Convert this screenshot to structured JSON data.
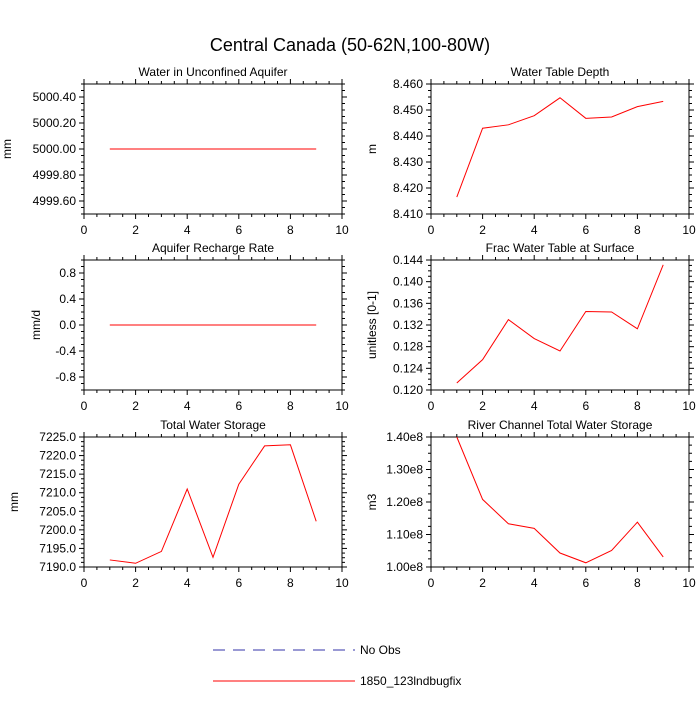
{
  "title": "Central Canada (50-62N,100-80W)",
  "colors": {
    "series": "#ff0000",
    "noobs": "#3333aa",
    "axis": "#000000"
  },
  "legend": [
    {
      "label": "No Obs",
      "style": "dashed",
      "color": "#3333aa"
    },
    {
      "label": "1850_123lndbugfix",
      "style": "solid",
      "color": "#ff0000"
    }
  ],
  "chart_data": [
    {
      "type": "line",
      "title": "Water in Unconfined Aquifer",
      "ylabel": "mm",
      "xlim": [
        0,
        10
      ],
      "ylim": [
        4999.5,
        5000.5
      ],
      "xticks": [
        0,
        2,
        4,
        6,
        8,
        10
      ],
      "xtick_labels": [
        "0",
        "2",
        "4",
        "6",
        "8",
        "10"
      ],
      "yticks": [
        4999.6,
        4999.8,
        5000.0,
        5000.2,
        5000.4
      ],
      "ytick_labels": [
        "4999.60",
        "4999.80",
        "5000.00",
        "5000.20",
        "5000.40"
      ],
      "x": [
        1,
        2,
        3,
        4,
        5,
        6,
        7,
        8,
        9
      ],
      "series": [
        {
          "name": "1850_123lndbugfix",
          "values": [
            5000,
            5000,
            5000,
            5000,
            5000,
            5000,
            5000,
            5000,
            5000
          ]
        }
      ]
    },
    {
      "type": "line",
      "title": "Water Table Depth",
      "ylabel": "m",
      "xlim": [
        0,
        10
      ],
      "ylim": [
        8.41,
        8.46
      ],
      "xticks": [
        0,
        2,
        4,
        6,
        8,
        10
      ],
      "xtick_labels": [
        "0",
        "2",
        "4",
        "6",
        "8",
        "10"
      ],
      "yticks": [
        8.41,
        8.42,
        8.43,
        8.44,
        8.45,
        8.46
      ],
      "ytick_labels": [
        "8.410",
        "8.420",
        "8.430",
        "8.440",
        "8.450",
        "8.460"
      ],
      "x": [
        1,
        2,
        3,
        4,
        5,
        6,
        7,
        8,
        9
      ],
      "series": [
        {
          "name": "1850_123lndbugfix",
          "values": [
            8.4165,
            8.443,
            8.4443,
            8.4478,
            8.4547,
            8.4468,
            8.4473,
            8.4513,
            8.4533
          ]
        }
      ]
    },
    {
      "type": "line",
      "title": "Aquifer Recharge Rate",
      "ylabel": "mm/d",
      "xlim": [
        0,
        10
      ],
      "ylim": [
        -1.0,
        1.0
      ],
      "xticks": [
        0,
        2,
        4,
        6,
        8,
        10
      ],
      "xtick_labels": [
        "0",
        "2",
        "4",
        "6",
        "8",
        "10"
      ],
      "yticks": [
        -0.8,
        -0.4,
        0.0,
        0.4,
        0.8
      ],
      "ytick_labels": [
        "-0.8",
        "-0.4",
        "0.0",
        "0.4",
        "0.8"
      ],
      "x": [
        1,
        2,
        3,
        4,
        5,
        6,
        7,
        8,
        9
      ],
      "series": [
        {
          "name": "1850_123lndbugfix",
          "values": [
            0,
            0,
            0,
            0,
            0,
            0,
            0,
            0,
            0
          ]
        }
      ]
    },
    {
      "type": "line",
      "title": "Frac Water Table at Surface",
      "ylabel": "unitless [0-1]",
      "xlim": [
        0,
        10
      ],
      "ylim": [
        0.12,
        0.144
      ],
      "xticks": [
        0,
        2,
        4,
        6,
        8,
        10
      ],
      "xtick_labels": [
        "0",
        "2",
        "4",
        "6",
        "8",
        "10"
      ],
      "yticks": [
        0.12,
        0.124,
        0.128,
        0.132,
        0.136,
        0.14,
        0.144
      ],
      "ytick_labels": [
        "0.120",
        "0.124",
        "0.128",
        "0.132",
        "0.136",
        "0.140",
        "0.144"
      ],
      "x": [
        1,
        2,
        3,
        4,
        5,
        6,
        7,
        8,
        9
      ],
      "series": [
        {
          "name": "1850_123lndbugfix",
          "values": [
            0.1213,
            0.1256,
            0.133,
            0.1295,
            0.1272,
            0.1345,
            0.1344,
            0.1313,
            0.1431
          ]
        }
      ]
    },
    {
      "type": "line",
      "title": "Total Water Storage",
      "ylabel": "mm",
      "xlim": [
        0,
        10
      ],
      "ylim": [
        7190.0,
        7225.0
      ],
      "xticks": [
        0,
        2,
        4,
        6,
        8,
        10
      ],
      "xtick_labels": [
        "0",
        "2",
        "4",
        "6",
        "8",
        "10"
      ],
      "yticks": [
        7190.0,
        7195.0,
        7200.0,
        7205.0,
        7210.0,
        7215.0,
        7220.0,
        7225.0
      ],
      "ytick_labels": [
        "7190.0",
        "7195.0",
        "7200.0",
        "7205.0",
        "7210.0",
        "7215.0",
        "7220.0",
        "7225.0"
      ],
      "x": [
        1,
        2,
        3,
        4,
        5,
        6,
        7,
        8,
        9
      ],
      "series": [
        {
          "name": "1850_123lndbugfix",
          "values": [
            7191.9,
            7191.0,
            7194.2,
            7211.0,
            7192.6,
            7212.3,
            7222.6,
            7222.9,
            7202.3
          ]
        }
      ]
    },
    {
      "type": "line",
      "title": "River Channel Total Water Storage",
      "ylabel": "m3",
      "xlim": [
        0,
        10
      ],
      "ylim": [
        100000000,
        140000000
      ],
      "xticks": [
        0,
        2,
        4,
        6,
        8,
        10
      ],
      "xtick_labels": [
        "0",
        "2",
        "4",
        "6",
        "8",
        "10"
      ],
      "yticks": [
        100000000,
        110000000,
        120000000,
        130000000,
        140000000
      ],
      "ytick_labels": [
        "1.00e8",
        "1.10e8",
        "1.20e8",
        "1.30e8",
        "1.40e8"
      ],
      "x": [
        1,
        2,
        3,
        4,
        5,
        6,
        7,
        8,
        9
      ],
      "series": [
        {
          "name": "1850_123lndbugfix",
          "values": [
            140000000,
            120800000,
            113300000,
            111900000,
            104300000,
            101300000,
            105100000,
            113800000,
            103100000
          ]
        }
      ]
    }
  ]
}
